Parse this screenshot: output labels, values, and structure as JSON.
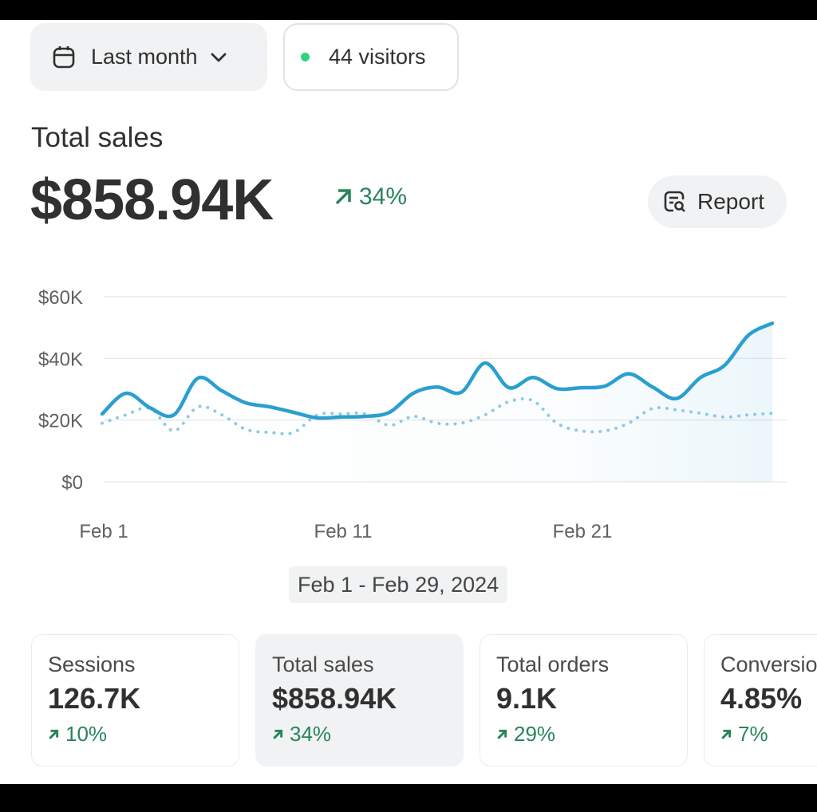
{
  "toolbar": {
    "date_range_label": "Last month",
    "date_icon": "calendar-icon",
    "visitors_label": "44 visitors",
    "live_dot_color": "#2fd27f"
  },
  "summary": {
    "title": "Total sales",
    "value": "$858.94K",
    "change": "34%",
    "change_direction": "up",
    "report_label": "Report",
    "report_icon": "report-search-icon"
  },
  "colors": {
    "current": "#2a9fd0",
    "previous": "#8dcbe3",
    "positive": "#29845a"
  },
  "chart_data": {
    "type": "line",
    "y_ticks": [
      "$0",
      "$20K",
      "$40K",
      "$60K"
    ],
    "ylim": [
      0,
      60000
    ],
    "x_ticks": [
      "Feb 1",
      "Feb 11",
      "Feb 21"
    ],
    "x": [
      "Feb 1",
      "Feb 2",
      "Feb 3",
      "Feb 4",
      "Feb 5",
      "Feb 6",
      "Feb 7",
      "Feb 8",
      "Feb 9",
      "Feb 10",
      "Feb 11",
      "Feb 12",
      "Feb 13",
      "Feb 14",
      "Feb 15",
      "Feb 16",
      "Feb 17",
      "Feb 18",
      "Feb 19",
      "Feb 20",
      "Feb 21",
      "Feb 22",
      "Feb 23",
      "Feb 24",
      "Feb 25",
      "Feb 26",
      "Feb 27",
      "Feb 28",
      "Feb 29"
    ],
    "grid": true,
    "series": [
      {
        "style": "solid",
        "values": [
          22000,
          28700,
          24000,
          21700,
          33600,
          29500,
          25600,
          24300,
          22500,
          20700,
          21000,
          21200,
          22500,
          28700,
          30700,
          29000,
          38500,
          30500,
          33800,
          30200,
          30500,
          31000,
          35000,
          30700,
          27000,
          33800,
          37700,
          47500,
          51400
        ]
      },
      {
        "style": "dotted",
        "values": [
          19000,
          21700,
          23800,
          16500,
          24300,
          21700,
          17000,
          16000,
          16000,
          21700,
          22000,
          22000,
          18300,
          21200,
          19000,
          19000,
          21700,
          26000,
          26300,
          19000,
          16500,
          16500,
          19000,
          23800,
          23300,
          22200,
          21000,
          21700,
          22200
        ]
      }
    ]
  },
  "date_range_caption": "Feb 1 - Feb 29, 2024",
  "metrics": [
    {
      "label": "Sessions",
      "value": "126.7K",
      "change": "10%"
    },
    {
      "label": "Total sales",
      "value": "$858.94K",
      "change": "34%",
      "selected": true
    },
    {
      "label": "Total orders",
      "value": "9.1K",
      "change": "29%"
    },
    {
      "label": "Conversion",
      "value": "4.85%",
      "change": "7%"
    }
  ]
}
